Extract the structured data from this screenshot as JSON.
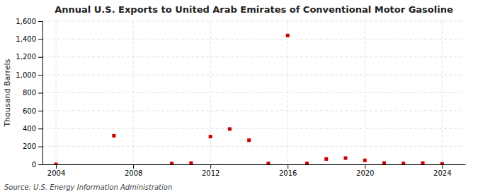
{
  "chart_data": {
    "type": "scatter",
    "title": "Annual U.S. Exports to United Arab Emirates of Conventional Motor Gasoline",
    "ylabel": "Thousand Barrels",
    "annotations": [
      "Source: U.S. Energy Information Administration"
    ],
    "x": [
      2004,
      2007,
      2010,
      2011,
      2012,
      2013,
      2014,
      2015,
      2016,
      2017,
      2018,
      2019,
      2020,
      2021,
      2022,
      2023,
      2024
    ],
    "values": [
      0,
      320,
      10,
      15,
      310,
      395,
      270,
      10,
      1440,
      10,
      60,
      70,
      45,
      15,
      10,
      15,
      5
    ],
    "color": "#cc0000",
    "marker": "square",
    "xlim": [
      2003.3,
      2025.2
    ],
    "ylim": [
      0,
      1600
    ],
    "xticks": [
      2004,
      2008,
      2012,
      2016,
      2020,
      2024
    ],
    "yticks": [
      0,
      200,
      400,
      600,
      800,
      {
        "value": 1000,
        "label": "1,000"
      },
      {
        "value": 1200,
        "label": "1,200"
      },
      {
        "value": 1400,
        "label": "1,400"
      },
      {
        "value": 1600,
        "label": "1,600"
      }
    ],
    "grid": true
  }
}
